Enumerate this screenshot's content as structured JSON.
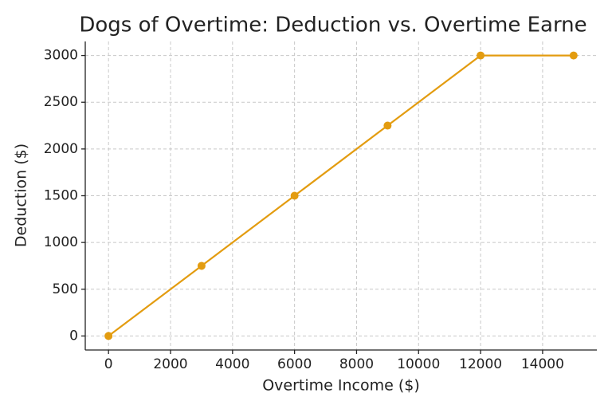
{
  "chart_data": {
    "type": "line",
    "title": "Dogs of Overtime: Deduction vs. Overtime Earne",
    "x_label": "Overtime Income ($)",
    "y_label": "Deduction ($)",
    "x": [
      0,
      3000,
      6000,
      9000,
      12000,
      15000
    ],
    "series": [
      {
        "name": "Deduction",
        "color": "#e39c10",
        "values": [
          0,
          750,
          1500,
          2250,
          3000,
          3000
        ]
      }
    ],
    "xlim": [
      -750,
      15750
    ],
    "ylim": [
      -150,
      3150
    ],
    "xticks": [
      0,
      2000,
      4000,
      6000,
      8000,
      10000,
      12000,
      14000
    ],
    "yticks": [
      0,
      500,
      1000,
      1500,
      2000,
      2500,
      3000
    ],
    "grid": true
  }
}
